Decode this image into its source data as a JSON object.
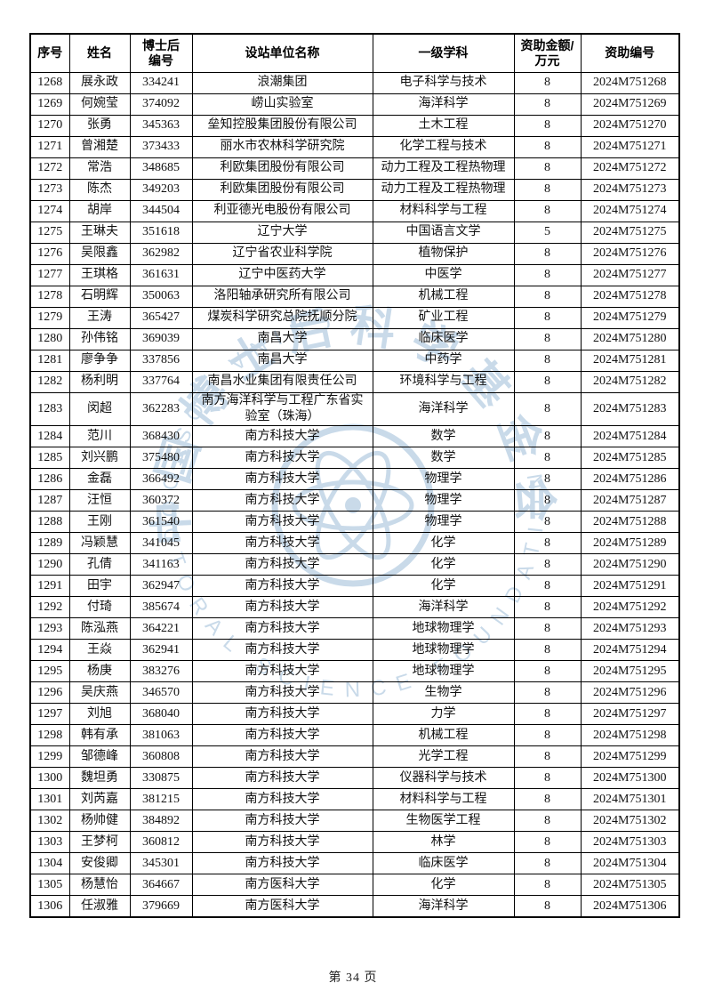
{
  "page": {
    "footer": "第 34 页"
  },
  "watermark": {
    "chinese_text": "中国博士后科学基金会",
    "english_text": "CHINA POSTDOCTORAL SCIENCE FOUNDATION",
    "color": "#7fa8cc"
  },
  "table": {
    "headers": [
      "序号",
      "姓名",
      "博士后\n编号",
      "设站单位名称",
      "一级学科",
      "资助金额/\n万元",
      "资助编号"
    ],
    "rows": [
      [
        "1268",
        "展永政",
        "334241",
        "浪潮集团",
        "电子科学与技术",
        "8",
        "2024M751268"
      ],
      [
        "1269",
        "何婉莹",
        "374092",
        "崂山实验室",
        "海洋科学",
        "8",
        "2024M751269"
      ],
      [
        "1270",
        "张勇",
        "345363",
        "垒知控股集团股份有限公司",
        "土木工程",
        "8",
        "2024M751270"
      ],
      [
        "1271",
        "曾湘楚",
        "373433",
        "丽水市农林科学研究院",
        "化学工程与技术",
        "8",
        "2024M751271"
      ],
      [
        "1272",
        "常浩",
        "348685",
        "利欧集团股份有限公司",
        "动力工程及工程热物理",
        "8",
        "2024M751272"
      ],
      [
        "1273",
        "陈杰",
        "349203",
        "利欧集团股份有限公司",
        "动力工程及工程热物理",
        "8",
        "2024M751273"
      ],
      [
        "1274",
        "胡岸",
        "344504",
        "利亚德光电股份有限公司",
        "材料科学与工程",
        "8",
        "2024M751274"
      ],
      [
        "1275",
        "王琳夫",
        "351618",
        "辽宁大学",
        "中国语言文学",
        "5",
        "2024M751275"
      ],
      [
        "1276",
        "吴限鑫",
        "362982",
        "辽宁省农业科学院",
        "植物保护",
        "8",
        "2024M751276"
      ],
      [
        "1277",
        "王琪格",
        "361631",
        "辽宁中医药大学",
        "中医学",
        "8",
        "2024M751277"
      ],
      [
        "1278",
        "石明辉",
        "350063",
        "洛阳轴承研究所有限公司",
        "机械工程",
        "8",
        "2024M751278"
      ],
      [
        "1279",
        "王涛",
        "365427",
        "煤炭科学研究总院抚顺分院",
        "矿业工程",
        "8",
        "2024M751279"
      ],
      [
        "1280",
        "孙伟铭",
        "369039",
        "南昌大学",
        "临床医学",
        "8",
        "2024M751280"
      ],
      [
        "1281",
        "廖争争",
        "337856",
        "南昌大学",
        "中药学",
        "8",
        "2024M751281"
      ],
      [
        "1282",
        "杨利明",
        "337764",
        "南昌水业集团有限责任公司",
        "环境科学与工程",
        "8",
        "2024M751282"
      ],
      [
        "1283",
        "闵超",
        "362283",
        "南方海洋科学与工程广东省实验室（珠海）",
        "海洋科学",
        "8",
        "2024M751283"
      ],
      [
        "1284",
        "范川",
        "368430",
        "南方科技大学",
        "数学",
        "8",
        "2024M751284"
      ],
      [
        "1285",
        "刘兴鹏",
        "375480",
        "南方科技大学",
        "数学",
        "8",
        "2024M751285"
      ],
      [
        "1286",
        "金磊",
        "366492",
        "南方科技大学",
        "物理学",
        "8",
        "2024M751286"
      ],
      [
        "1287",
        "汪恒",
        "360372",
        "南方科技大学",
        "物理学",
        "8",
        "2024M751287"
      ],
      [
        "1288",
        "王刚",
        "361540",
        "南方科技大学",
        "物理学",
        "8",
        "2024M751288"
      ],
      [
        "1289",
        "冯颖慧",
        "341045",
        "南方科技大学",
        "化学",
        "8",
        "2024M751289"
      ],
      [
        "1290",
        "孔倩",
        "341163",
        "南方科技大学",
        "化学",
        "8",
        "2024M751290"
      ],
      [
        "1291",
        "田宇",
        "362947",
        "南方科技大学",
        "化学",
        "8",
        "2024M751291"
      ],
      [
        "1292",
        "付琦",
        "385674",
        "南方科技大学",
        "海洋科学",
        "8",
        "2024M751292"
      ],
      [
        "1293",
        "陈泓燕",
        "364221",
        "南方科技大学",
        "地球物理学",
        "8",
        "2024M751293"
      ],
      [
        "1294",
        "王焱",
        "362941",
        "南方科技大学",
        "地球物理学",
        "8",
        "2024M751294"
      ],
      [
        "1295",
        "杨庚",
        "383276",
        "南方科技大学",
        "地球物理学",
        "8",
        "2024M751295"
      ],
      [
        "1296",
        "吴庆燕",
        "346570",
        "南方科技大学",
        "生物学",
        "8",
        "2024M751296"
      ],
      [
        "1297",
        "刘旭",
        "368040",
        "南方科技大学",
        "力学",
        "8",
        "2024M751297"
      ],
      [
        "1298",
        "韩有承",
        "381063",
        "南方科技大学",
        "机械工程",
        "8",
        "2024M751298"
      ],
      [
        "1299",
        "邹德峰",
        "360808",
        "南方科技大学",
        "光学工程",
        "8",
        "2024M751299"
      ],
      [
        "1300",
        "魏坦勇",
        "330875",
        "南方科技大学",
        "仪器科学与技术",
        "8",
        "2024M751300"
      ],
      [
        "1301",
        "刘芮嘉",
        "381215",
        "南方科技大学",
        "材料科学与工程",
        "8",
        "2024M751301"
      ],
      [
        "1302",
        "杨帅健",
        "384892",
        "南方科技大学",
        "生物医学工程",
        "8",
        "2024M751302"
      ],
      [
        "1303",
        "王梦柯",
        "360812",
        "南方科技大学",
        "林学",
        "8",
        "2024M751303"
      ],
      [
        "1304",
        "安俊卿",
        "345301",
        "南方科技大学",
        "临床医学",
        "8",
        "2024M751304"
      ],
      [
        "1305",
        "杨慧怡",
        "364667",
        "南方医科大学",
        "化学",
        "8",
        "2024M751305"
      ],
      [
        "1306",
        "任淑雅",
        "379669",
        "南方医科大学",
        "海洋科学",
        "8",
        "2024M751306"
      ]
    ]
  }
}
